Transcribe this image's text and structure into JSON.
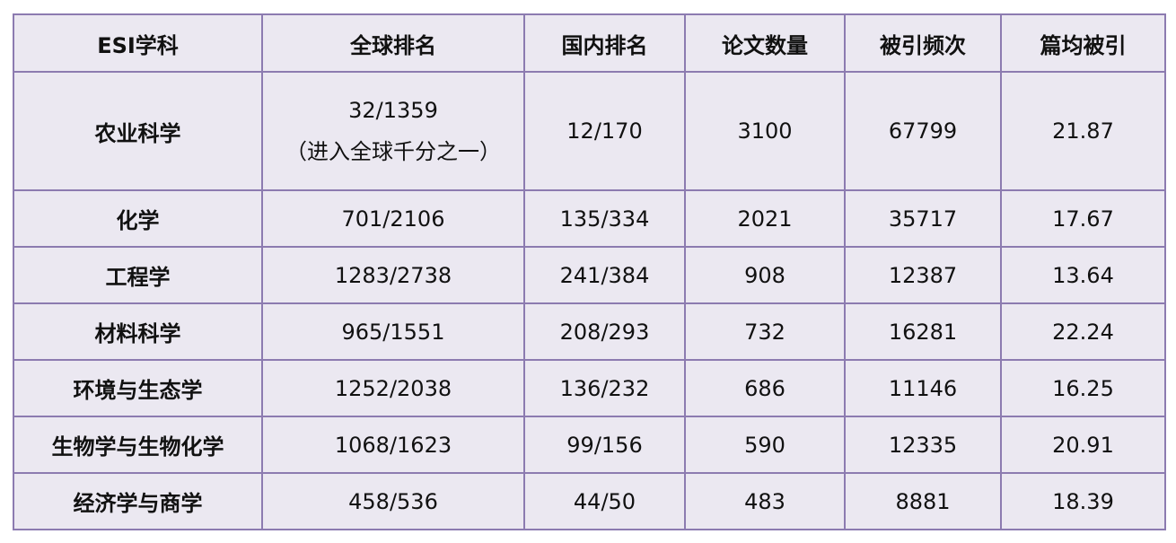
{
  "colors": {
    "cell_bg": "#ebe8f1",
    "border": "#8c7bb0"
  },
  "headers": [
    "ESI学科",
    "全球排名",
    "国内排名",
    "论文数量",
    "被引频次",
    "篇均被引"
  ],
  "rows": [
    {
      "subject": "农业科学",
      "global_rank": "32/1359",
      "note": "（进入全球千分之一）",
      "domestic_rank": "12/170",
      "papers": "3100",
      "citations": "67799",
      "avg_citations": "21.87"
    },
    {
      "subject": "化学",
      "global_rank": "701/2106",
      "domestic_rank": "135/334",
      "papers": "2021",
      "citations": "35717",
      "avg_citations": "17.67"
    },
    {
      "subject": "工程学",
      "global_rank": "1283/2738",
      "domestic_rank": "241/384",
      "papers": "908",
      "citations": "12387",
      "avg_citations": "13.64"
    },
    {
      "subject": "材料科学",
      "global_rank": "965/1551",
      "domestic_rank": "208/293",
      "papers": "732",
      "citations": "16281",
      "avg_citations": "22.24"
    },
    {
      "subject": "环境与生态学",
      "global_rank": "1252/2038",
      "domestic_rank": "136/232",
      "papers": "686",
      "citations": "11146",
      "avg_citations": "16.25"
    },
    {
      "subject": "生物学与生物化学",
      "global_rank": "1068/1623",
      "domestic_rank": "99/156",
      "papers": "590",
      "citations": "12335",
      "avg_citations": "20.91"
    },
    {
      "subject": "经济学与商学",
      "global_rank": "458/536",
      "domestic_rank": "44/50",
      "papers": "483",
      "citations": "8881",
      "avg_citations": "18.39"
    }
  ]
}
